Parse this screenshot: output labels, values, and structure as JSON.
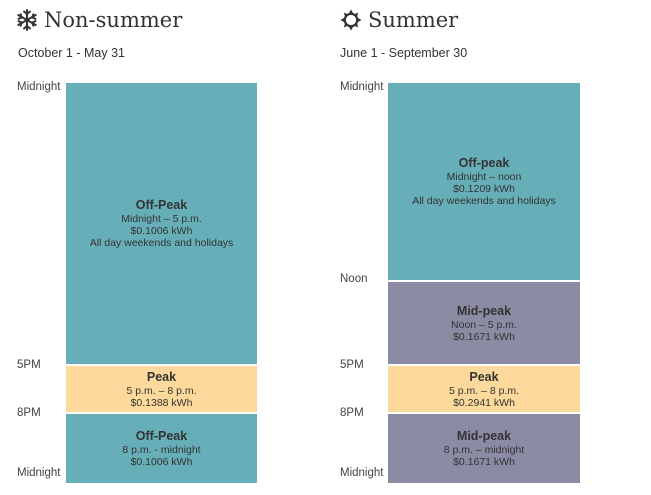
{
  "nonsummer": {
    "title": "Non-summer",
    "icon": "snowflake-icon",
    "dates": "October 1 - May 31",
    "ticks": [
      "Midnight",
      "5PM",
      "8PM",
      "Midnight"
    ],
    "segments": [
      {
        "name": "Off-Peak",
        "hours": "Midnight – 5 p.m.",
        "rate": "$0.1006 kWh",
        "note": "All day weekends and holidays",
        "color": "#67afb8"
      },
      {
        "name": "Peak",
        "hours": "5 p.m. – 8 p.m.",
        "rate": "$0.1388 kWh",
        "color": "#fdd99b"
      },
      {
        "name": "Off-Peak",
        "hours": "8 p.m. - midnight",
        "rate": "$0.1006 kWh",
        "color": "#67afb8"
      }
    ]
  },
  "summer": {
    "title": "Summer",
    "icon": "sun-icon",
    "dates": "June 1 - September 30",
    "ticks": [
      "Midnight",
      "Noon",
      "5PM",
      "8PM",
      "Midnight"
    ],
    "segments": [
      {
        "name": "Off-peak",
        "hours": "Midnight – noon",
        "rate": "$0.1209 kWh",
        "note": "All day weekends and holidays",
        "color": "#67afb8"
      },
      {
        "name": "Mid-peak",
        "hours": "Noon – 5 p.m.",
        "rate": "$0.1671 kWh",
        "color": "#8c8ba4"
      },
      {
        "name": "Peak",
        "hours": "5 p.m. – 8 p.m.",
        "rate": "$0.2941 kWh",
        "color": "#fdd99b"
      },
      {
        "name": "Mid-peak",
        "hours": "8 p.m. – midnight",
        "rate": "$0.1671 kWh",
        "color": "#8c8ba4"
      }
    ]
  }
}
